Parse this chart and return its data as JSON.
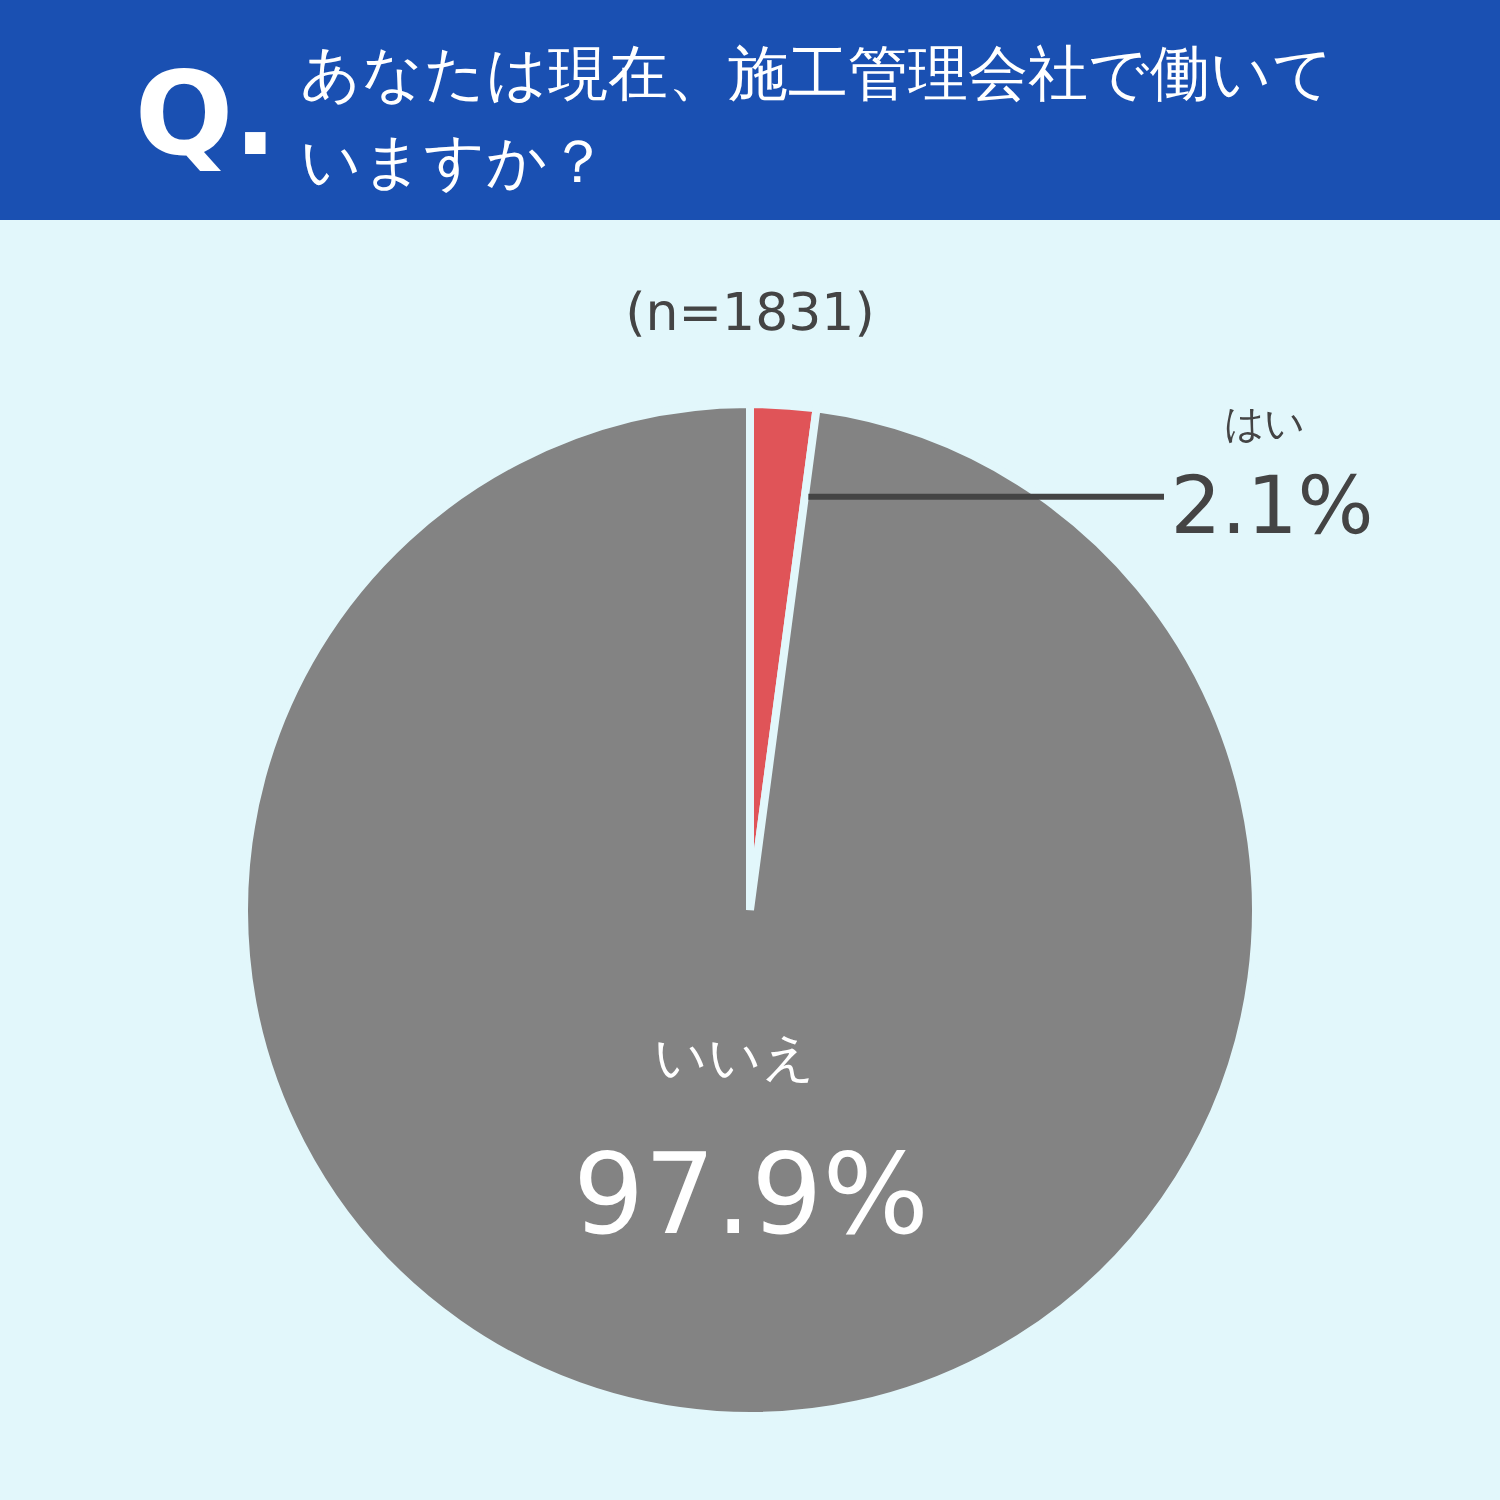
{
  "chart_data": {
    "type": "pie",
    "title": "Q. あなたは現在、施工管理会社で働いていますか？",
    "subtitle": "(n=1831)",
    "categories": [
      "はい",
      "いいえ"
    ],
    "values": [
      2.1,
      97.9
    ],
    "colors": [
      "#e05458",
      "#838383"
    ],
    "value_labels": [
      "2.1%",
      "97.9%"
    ]
  }
}
